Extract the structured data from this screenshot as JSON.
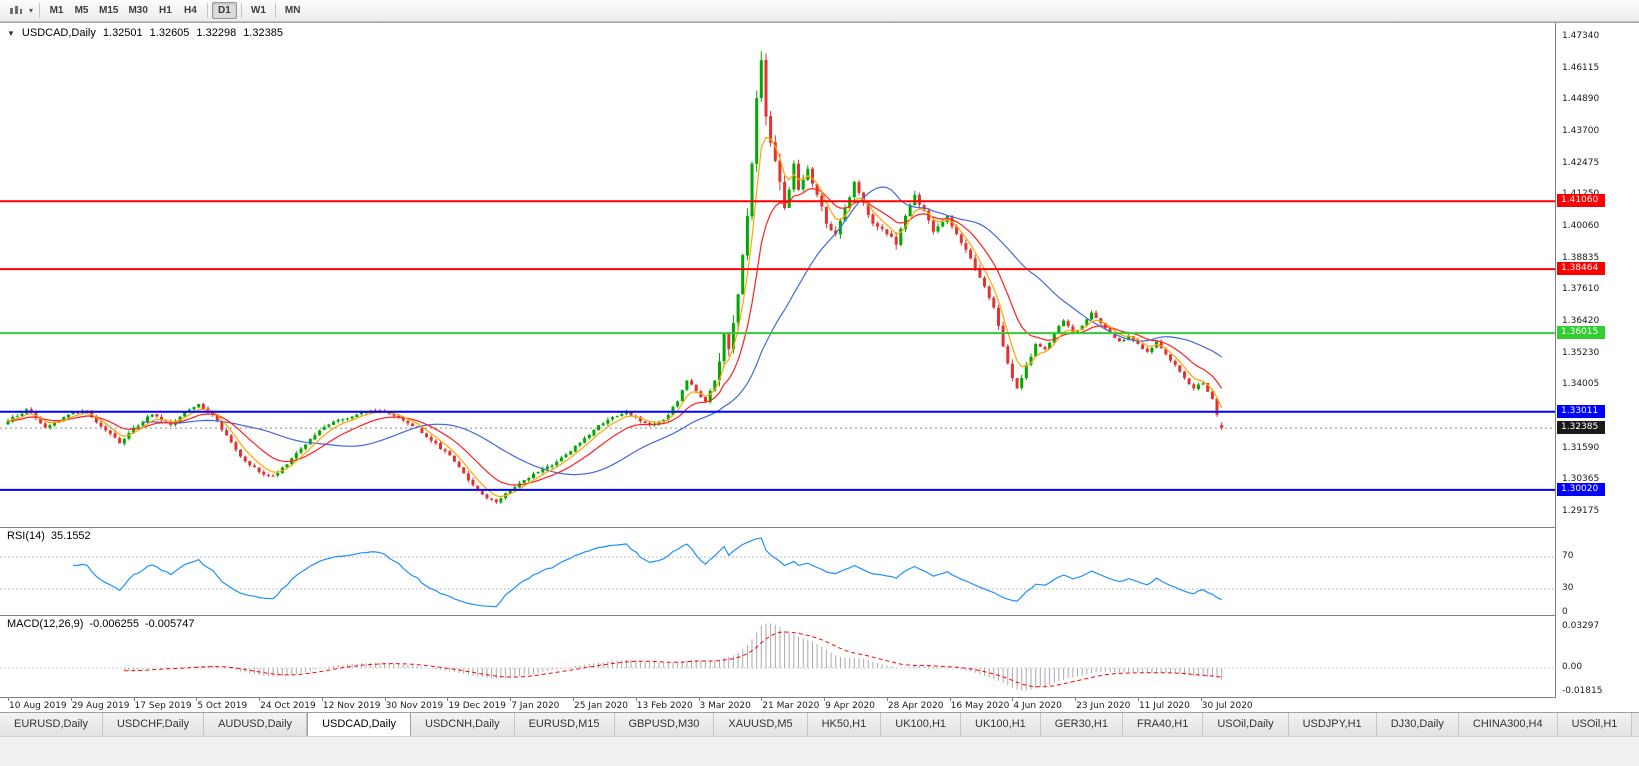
{
  "toolbar": {
    "timeframes": [
      {
        "label": "M1",
        "active": false
      },
      {
        "label": "M5",
        "active": false
      },
      {
        "label": "M15",
        "active": false
      },
      {
        "label": "M30",
        "active": false
      },
      {
        "label": "H1",
        "active": false
      },
      {
        "label": "H4",
        "active": false
      },
      {
        "label": "D1",
        "active": true
      },
      {
        "label": "W1",
        "active": false
      },
      {
        "label": "MN",
        "active": false
      }
    ]
  },
  "chart": {
    "title": {
      "symbol_period": "USDCAD,Daily",
      "open": "1.32501",
      "high": "1.32605",
      "low": "1.32298",
      "close": "1.32385"
    },
    "one_click_glyph": "▼",
    "price_scale": {
      "ticks": [
        "1.47340",
        "1.46115",
        "1.44890",
        "1.43700",
        "1.42475",
        "1.41250",
        "1.40060",
        "1.38835",
        "1.37610",
        "1.36420",
        "1.35230",
        "1.34005",
        "1.32780",
        "1.31590",
        "1.30365",
        "1.29175"
      ]
    },
    "current_price": {
      "value": 1.32385,
      "label": "1.32385",
      "box_color": "#1a1a1a"
    },
    "colors": {
      "background": "#FFFFFF",
      "candle_up": "#00A800",
      "candle_down": "#E23232",
      "rsi": "#1E90FF",
      "macd_histogram": "#A9A9A9",
      "macd_signal": "#FF0000",
      "separator": "#808080",
      "current_price_line": "#8a8a8a"
    }
  },
  "indicators": {
    "rsi": {
      "label": "RSI(14)",
      "value": "35.1552",
      "scale": [
        {
          "label": "70",
          "v": 70
        },
        {
          "label": "30",
          "v": 30
        },
        {
          "label": "0",
          "v": 0
        }
      ]
    },
    "macd": {
      "label": "MACD(12,26,9)",
      "value_macd": "-0.006255",
      "value_signal": "-0.005747",
      "scale": [
        {
          "label": "0.03297",
          "v": 0.03297
        },
        {
          "label": "0.00",
          "v": 0
        },
        {
          "label": "-0.01815",
          "v": -0.01815
        }
      ]
    }
  },
  "chart_data": {
    "type": "candlestick",
    "symbol": "USDCAD",
    "timeframe": "Daily",
    "total_bars": 262,
    "bars_per_label": 13.5,
    "x_labels": [
      "10 Aug 2019",
      "29 Aug 2019",
      "17 Sep 2019",
      "5 Oct 2019",
      "24 Oct 2019",
      "12 Nov 2019",
      "30 Nov 2019",
      "19 Dec 2019",
      "7 Jan 2020",
      "25 Jan 2020",
      "13 Feb 2020",
      "3 Mar 2020",
      "21 Mar 2020",
      "9 Apr 2020",
      "28 Apr 2020",
      "16 May 2020",
      "4 Jun 2020",
      "23 Jun 2020",
      "11 Jul 2020",
      "30 Jul 2020"
    ],
    "y_axis": {
      "min": 1.29175,
      "max": 1.4734
    },
    "ohlc_current": {
      "open": 1.32501,
      "high": 1.32605,
      "low": 1.32298,
      "close": 1.32385
    },
    "price_path_anchors": [
      [
        0,
        1.3265
      ],
      [
        4,
        1.331
      ],
      [
        8,
        1.324
      ],
      [
        13,
        1.329
      ],
      [
        17,
        1.33
      ],
      [
        21,
        1.323
      ],
      [
        24,
        1.318
      ],
      [
        27,
        1.324
      ],
      [
        31,
        1.329
      ],
      [
        35,
        1.325
      ],
      [
        38,
        1.33
      ],
      [
        41,
        1.333
      ],
      [
        44,
        1.329
      ],
      [
        47,
        1.321
      ],
      [
        50,
        1.313
      ],
      [
        54,
        1.307
      ],
      [
        57,
        1.3055
      ],
      [
        60,
        1.31
      ],
      [
        63,
        1.316
      ],
      [
        67,
        1.323
      ],
      [
        71,
        1.327
      ],
      [
        75,
        1.329
      ],
      [
        78,
        1.3305
      ],
      [
        81,
        1.33
      ],
      [
        84,
        1.328
      ],
      [
        88,
        1.324
      ],
      [
        91,
        1.319
      ],
      [
        94,
        1.315
      ],
      [
        97,
        1.309
      ],
      [
        100,
        1.302
      ],
      [
        103,
        1.297
      ],
      [
        105,
        1.2955
      ],
      [
        108,
        1.3
      ],
      [
        111,
        1.304
      ],
      [
        114,
        1.307
      ],
      [
        118,
        1.311
      ],
      [
        121,
        1.315
      ],
      [
        124,
        1.32
      ],
      [
        127,
        1.325
      ],
      [
        130,
        1.328
      ],
      [
        133,
        1.33
      ],
      [
        135,
        1.328
      ],
      [
        138,
        1.325
      ],
      [
        141,
        1.327
      ],
      [
        144,
        1.334
      ],
      [
        146,
        1.342
      ],
      [
        148,
        1.338
      ],
      [
        150,
        1.334
      ],
      [
        152,
        1.342
      ],
      [
        154,
        1.36
      ],
      [
        155,
        1.354
      ],
      [
        156,
        1.364
      ],
      [
        157,
        1.375
      ],
      [
        158,
        1.39
      ],
      [
        159,
        1.405
      ],
      [
        160,
        1.425
      ],
      [
        161,
        1.45
      ],
      [
        162,
        1.4645
      ],
      [
        163,
        1.443
      ],
      [
        164,
        1.433
      ],
      [
        165,
        1.426
      ],
      [
        166,
        1.418
      ],
      [
        167,
        1.408
      ],
      [
        168,
        1.415
      ],
      [
        169,
        1.425
      ],
      [
        170,
        1.415
      ],
      [
        172,
        1.423
      ],
      [
        174,
        1.413
      ],
      [
        176,
        1.402
      ],
      [
        178,
        1.398
      ],
      [
        180,
        1.408
      ],
      [
        182,
        1.418
      ],
      [
        184,
        1.41
      ],
      [
        186,
        1.402
      ],
      [
        189,
        1.398
      ],
      [
        191,
        1.394
      ],
      [
        193,
        1.405
      ],
      [
        195,
        1.413
      ],
      [
        197,
        1.407
      ],
      [
        199,
        1.399
      ],
      [
        202,
        1.405
      ],
      [
        204,
        1.398
      ],
      [
        206,
        1.392
      ],
      [
        208,
        1.385
      ],
      [
        210,
        1.378
      ],
      [
        212,
        1.37
      ],
      [
        214,
        1.355
      ],
      [
        216,
        1.343
      ],
      [
        217,
        1.339
      ],
      [
        219,
        1.348
      ],
      [
        221,
        1.356
      ],
      [
        223,
        1.354
      ],
      [
        225,
        1.36
      ],
      [
        227,
        1.365
      ],
      [
        229,
        1.36
      ],
      [
        231,
        1.363
      ],
      [
        233,
        1.368
      ],
      [
        235,
        1.364
      ],
      [
        237,
        1.36
      ],
      [
        239,
        1.357
      ],
      [
        241,
        1.359
      ],
      [
        243,
        1.356
      ],
      [
        245,
        1.353
      ],
      [
        247,
        1.357
      ],
      [
        249,
        1.352
      ],
      [
        251,
        1.348
      ],
      [
        253,
        1.343
      ],
      [
        255,
        1.339
      ],
      [
        257,
        1.341
      ],
      [
        259,
        1.335
      ],
      [
        260,
        1.329
      ],
      [
        261,
        1.32385
      ]
    ],
    "moving_averages": [
      {
        "name": "ma-slow",
        "color": "#4169E1",
        "period": 30,
        "method": "sma"
      },
      {
        "name": "ma-medium",
        "color": "#FF2020",
        "period": 13,
        "method": "ema"
      },
      {
        "name": "ma-fast",
        "color": "#FFA500",
        "period": 5,
        "method": "ema"
      }
    ],
    "horizontal_lines": [
      {
        "price": 1.4106,
        "label": "1.41060",
        "color": "#FF0000"
      },
      {
        "price": 1.38464,
        "label": "1.38464",
        "color": "#FF0000"
      },
      {
        "price": 1.36015,
        "label": "1.36015",
        "color": "#32CD32"
      },
      {
        "price": 1.33011,
        "label": "1.33011",
        "color": "#0000FF"
      },
      {
        "price": 1.3002,
        "label": "1.30020",
        "color": "#0000FF"
      }
    ],
    "rsi": {
      "period": 14,
      "current": 35.1552,
      "levels": [
        70,
        30
      ]
    },
    "macd": {
      "fast": 12,
      "slow": 26,
      "signal": 9,
      "current_macd": -0.006255,
      "current_signal": -0.005747,
      "range": [
        -0.01815,
        0.03297
      ]
    }
  },
  "tabs": [
    {
      "label": "EURUSD,Daily",
      "active": false
    },
    {
      "label": "USDCHF,Daily",
      "active": false
    },
    {
      "label": "AUDUSD,Daily",
      "active": false
    },
    {
      "label": "USDCAD,Daily",
      "active": true
    },
    {
      "label": "USDCNH,Daily",
      "active": false
    },
    {
      "label": "EURUSD,M15",
      "active": false
    },
    {
      "label": "GBPUSD,M30",
      "active": false
    },
    {
      "label": "XAUUSD,M5",
      "active": false
    },
    {
      "label": "HK50,H1",
      "active": false
    },
    {
      "label": "UK100,H1",
      "active": false
    },
    {
      "label": "UK100,H1",
      "active": false
    },
    {
      "label": "GER30,H1",
      "active": false
    },
    {
      "label": "FRA40,H1",
      "active": false
    },
    {
      "label": "USOil,Daily",
      "active": false
    },
    {
      "label": "USDJPY,H1",
      "active": false
    },
    {
      "label": "DJ30,Daily",
      "active": false
    },
    {
      "label": "CHINA300,H4",
      "active": false
    },
    {
      "label": "USOil,H1",
      "active": false
    }
  ]
}
